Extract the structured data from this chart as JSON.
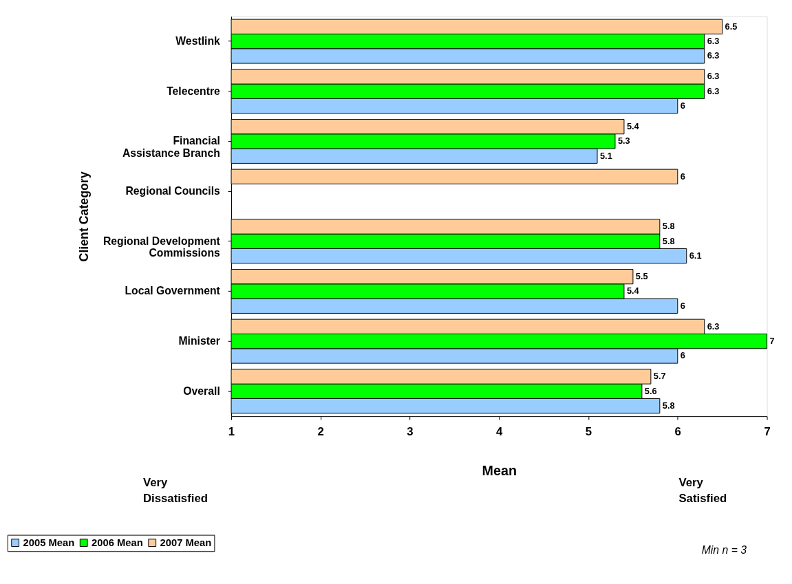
{
  "chart_data": {
    "type": "bar",
    "orientation": "horizontal",
    "xlabel": "Mean",
    "ylabel": "Client Category",
    "categories": [
      "Westlink",
      "Telecentre",
      "Financial Assistance Branch",
      "Regional Councils",
      "Regional Development Commissions",
      "Local Government",
      "Minister",
      "Overall"
    ],
    "series": [
      {
        "name": "2005 Mean",
        "color": "#99ccff",
        "values": [
          6.3,
          6,
          5.1,
          null,
          6.1,
          6,
          6,
          5.8
        ]
      },
      {
        "name": "2006 Mean",
        "color": "#00ff00",
        "values": [
          6.3,
          6.3,
          5.3,
          null,
          5.8,
          5.4,
          7,
          5.6
        ]
      },
      {
        "name": "2007 Mean",
        "color": "#ffcc99",
        "values": [
          6.5,
          6.3,
          5.4,
          6,
          5.8,
          5.5,
          6.3,
          5.7
        ]
      }
    ],
    "xlim": [
      1,
      7
    ],
    "xticks": [
      1,
      2,
      3,
      4,
      5,
      6,
      7
    ],
    "grid": false,
    "data_labels": true,
    "legend": "bottom left",
    "annotations": [
      "Very Dissatisfied",
      "Very Satisfied",
      "Min n = 3"
    ]
  }
}
